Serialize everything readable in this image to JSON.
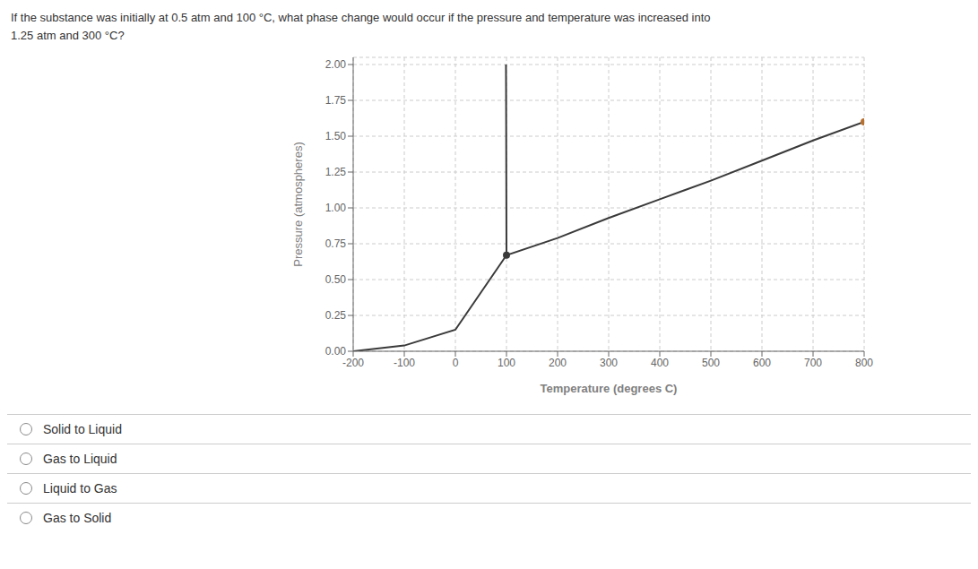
{
  "chart_data": {
    "type": "line",
    "title": "If the substance was initially at 0.5 atm and 100 °C, what phase change would occur if the pressure and temperature was increased into",
    "subtitle": "1.25 atm and 300 °C?",
    "annotations": [
      "Solid to Liquid",
      "Gas to Liquid",
      "Liquid to Gas",
      "Gas to Solid"
    ],
    "xlabel": "Temperature (degrees C)",
    "ylabel": "Pressure (atmospheres)",
    "xlim": [
      -200,
      800
    ],
    "xticks": [
      -200,
      -100,
      0,
      100,
      200,
      300,
      400,
      500,
      600,
      700,
      800
    ],
    "ylim": [
      0.0,
      2.05
    ],
    "yticks": [
      {
        "value": 0.0,
        "label": "0.00"
      },
      {
        "value": 0.25,
        "label": "0.25"
      },
      {
        "value": 0.5,
        "label": "0.50"
      },
      {
        "value": 0.75,
        "label": "0.75"
      },
      {
        "value": 1.0,
        "label": "1.00"
      },
      {
        "value": 1.25,
        "label": "1.25"
      },
      {
        "value": 1.5,
        "label": "1.50"
      },
      {
        "value": 1.75,
        "label": "1.75"
      },
      {
        "value": 2.0,
        "label": "2.00"
      }
    ],
    "grid": true,
    "series": [
      {
        "x": [
          -200,
          -100,
          0,
          100,
          200,
          300,
          400,
          500,
          600,
          700,
          800
        ],
        "values": [
          0.0,
          0.04,
          0.15,
          0.67,
          0.79,
          0.93,
          1.06,
          1.19,
          1.33,
          1.47,
          1.6
        ],
        "color": "#3a3a3a",
        "line_style": "solid"
      },
      {
        "x": [
          100,
          99.8,
          99.6,
          99.4,
          99.2,
          99.0
        ],
        "values": [
          0.67,
          1.0,
          1.3,
          1.6,
          1.85,
          2.0
        ],
        "color": "#3a3a3a",
        "line_style": "solid"
      },
      {
        "x": [
          100
        ],
        "values": [
          0.67
        ],
        "color": "#3a3a3a",
        "marker": "circle",
        "line_style": "none"
      },
      {
        "x": [
          800
        ],
        "values": [
          1.6
        ],
        "color": "#b87030",
        "marker": "circle",
        "line_style": "none"
      }
    ]
  }
}
